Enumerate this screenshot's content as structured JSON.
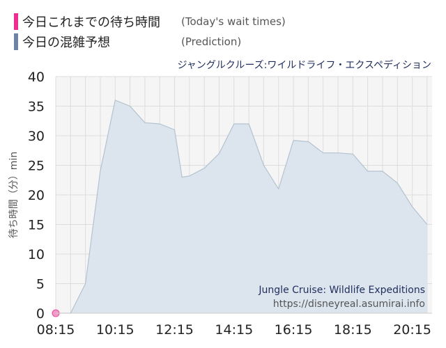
{
  "legend": {
    "items": [
      {
        "label": "今日これまでの待ち時間",
        "sub": "(Today's wait times)",
        "color": "#ee2d90"
      },
      {
        "label": "今日の混雑予想",
        "sub": "(Prediction)",
        "color": "#6e82a8"
      }
    ]
  },
  "chart_data": {
    "type": "area",
    "title": "ジャングルクルーズ:ワイルドライフ・エクスペディション",
    "ylabel": "待ち時間（分）min",
    "ylim": [
      0,
      40
    ],
    "yticks": [
      0,
      5,
      10,
      15,
      20,
      25,
      30,
      35,
      40
    ],
    "xticks": [
      "08:15",
      "10:15",
      "12:15",
      "14:15",
      "16:15",
      "18:15",
      "20:15"
    ],
    "xlim_minutes": [
      495,
      1255
    ],
    "grid": true,
    "watermark": {
      "line1": "Jungle Cruise: Wildlife Expeditions",
      "line2": "https://disneyreal.asumirai.info"
    },
    "series": [
      {
        "name": "今日の混雑予想",
        "color": "#6e82a8",
        "fill": "#dce5ed",
        "points": [
          {
            "t": "08:15",
            "v": 0
          },
          {
            "t": "08:45",
            "v": 0
          },
          {
            "t": "09:15",
            "v": 5
          },
          {
            "t": "09:45",
            "v": 24
          },
          {
            "t": "10:15",
            "v": 36
          },
          {
            "t": "10:45",
            "v": 35
          },
          {
            "t": "11:15",
            "v": 32.2
          },
          {
            "t": "11:45",
            "v": 32
          },
          {
            "t": "12:15",
            "v": 31
          },
          {
            "t": "12:30",
            "v": 23
          },
          {
            "t": "12:45",
            "v": 23.2
          },
          {
            "t": "13:15",
            "v": 24.5
          },
          {
            "t": "13:45",
            "v": 27
          },
          {
            "t": "14:15",
            "v": 32
          },
          {
            "t": "14:45",
            "v": 32
          },
          {
            "t": "15:15",
            "v": 25
          },
          {
            "t": "15:45",
            "v": 21
          },
          {
            "t": "16:15",
            "v": 29.2
          },
          {
            "t": "16:45",
            "v": 29
          },
          {
            "t": "17:15",
            "v": 27.1
          },
          {
            "t": "17:45",
            "v": 27.1
          },
          {
            "t": "18:15",
            "v": 26.9
          },
          {
            "t": "18:45",
            "v": 24
          },
          {
            "t": "19:15",
            "v": 24
          },
          {
            "t": "19:45",
            "v": 22
          },
          {
            "t": "20:15",
            "v": 18
          },
          {
            "t": "20:45",
            "v": 15
          }
        ]
      },
      {
        "name": "今日これまでの待ち時間",
        "color": "#ee2d90",
        "points": [
          {
            "t": "08:15",
            "v": 0
          }
        ]
      }
    ]
  }
}
